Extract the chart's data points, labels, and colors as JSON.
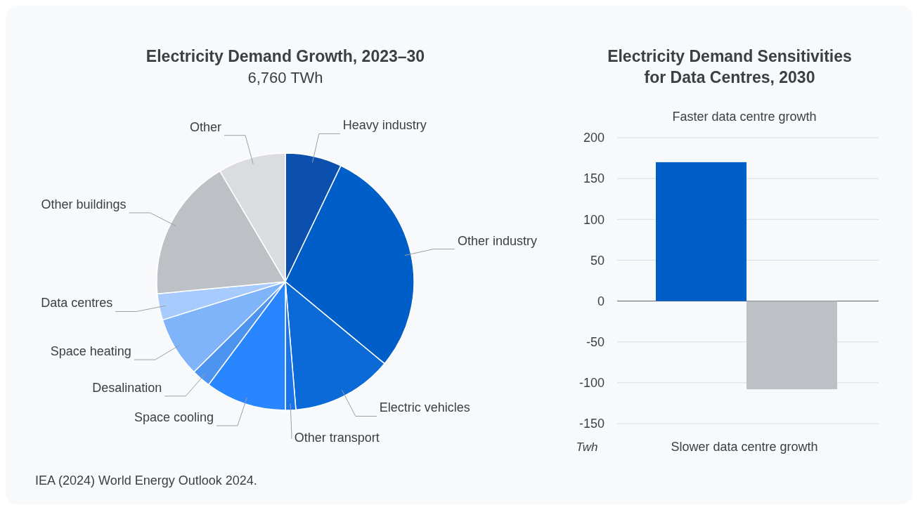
{
  "chart_data": [
    {
      "type": "pie",
      "title": "Electricity Demand Growth, 2023–30",
      "subtitle": "6,760 TWh",
      "categories": [
        "Heavy industry",
        "Other industry",
        "Electric vehicles",
        "Other transport",
        "Space cooling",
        "Desalination",
        "Space heating",
        "Data centres",
        "Other buildings",
        "Other"
      ],
      "values": [
        7.1,
        28.9,
        12.7,
        1.3,
        10.2,
        2.4,
        7.6,
        3.3,
        18.0,
        8.5
      ],
      "colors": [
        "#0b4faf",
        "#005ec8",
        "#0b69d8",
        "#1a73e8",
        "#2a86ff",
        "#4c94f0",
        "#7fb3fa",
        "#a8cbfd",
        "#bdc1c6",
        "#dadce0"
      ],
      "annotations": [
        "IEA (2024) World Energy Outlook 2024."
      ]
    },
    {
      "type": "bar",
      "title": "Electricity Demand Sensitivities for Data Centres, 2030",
      "categories": [
        null,
        null
      ],
      "values": [
        170,
        -108
      ],
      "colors": [
        "#005ec8",
        "#bdc1c6"
      ],
      "ylim": [
        -150,
        200
      ],
      "yticks": [
        -150,
        -100,
        -50,
        0,
        50,
        100,
        150,
        200
      ],
      "grid": "y",
      "ylabel": "Twh",
      "annotations": [
        "Faster data centre growth",
        "Slower data centre growth"
      ]
    }
  ]
}
